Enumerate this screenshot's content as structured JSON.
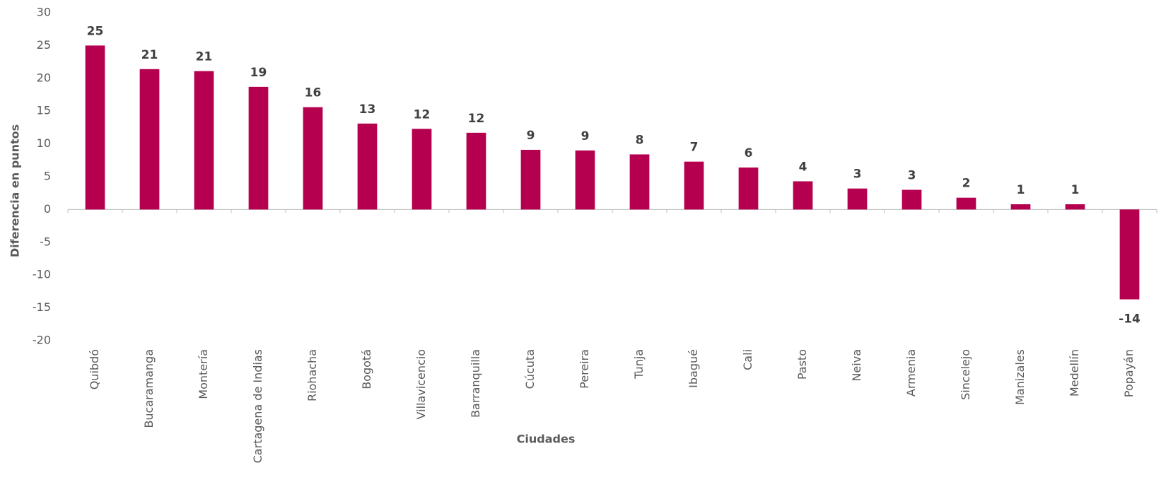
{
  "chart_data": {
    "type": "bar",
    "xlabel": "Ciudades",
    "ylabel": "Diferencia en puntos",
    "categories": [
      "Quibdó",
      "Bucaramanga",
      "Montería",
      "Cartagena de Indias",
      "Riohacha",
      "Bogotá",
      "Villavicencio",
      "Barranquilla",
      "Cúcuta",
      "Pereira",
      "Tunja",
      "Ibagué",
      "Cali",
      "Pasto",
      "Neiva",
      "Armenia",
      "Sincelejo",
      "Manizales",
      "Medellín",
      "Popayán"
    ],
    "values": [
      25.0,
      21.4,
      21.1,
      18.7,
      15.6,
      13.1,
      12.3,
      11.7,
      9.1,
      9.0,
      8.4,
      7.3,
      6.4,
      4.3,
      3.2,
      3.0,
      1.8,
      0.8,
      0.8,
      -13.7
    ],
    "value_labels": [
      "25",
      "21",
      "21",
      "19",
      "16",
      "13",
      "12",
      "12",
      "9",
      "9",
      "8",
      "7",
      "6",
      "4",
      "3",
      "3",
      "2",
      "1",
      "1",
      "-14"
    ],
    "color": "#b4004e",
    "ylim": [
      -20,
      30
    ],
    "yticks": [
      -20,
      -15,
      -10,
      -5,
      0,
      5,
      10,
      15,
      20,
      25,
      30
    ],
    "grid": false
  }
}
